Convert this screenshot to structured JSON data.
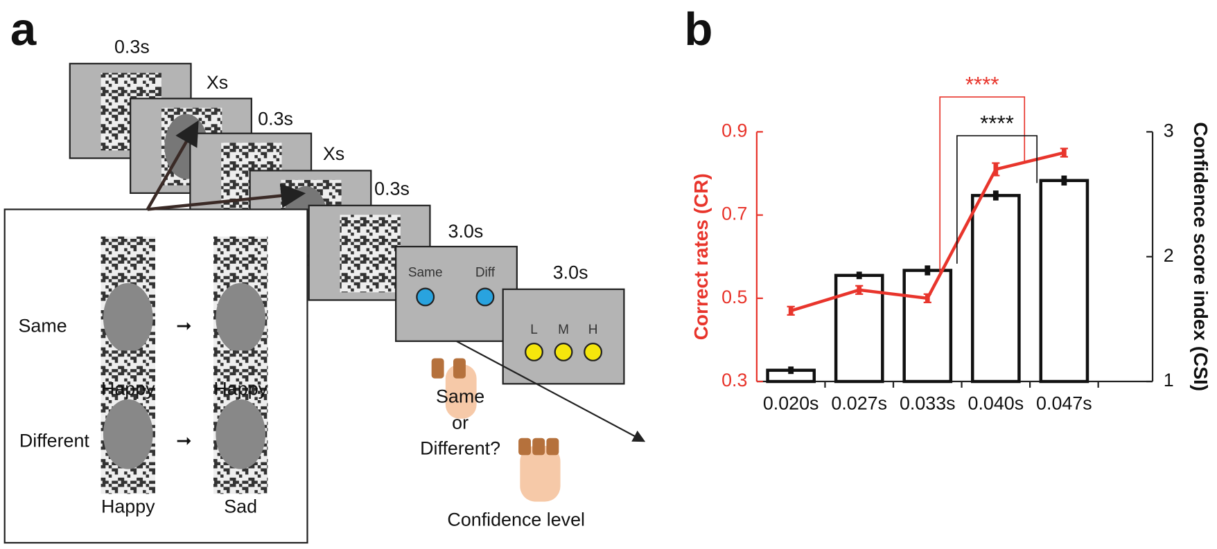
{
  "panel_a": {
    "label": "a",
    "timings": [
      "0.3s",
      "Xs",
      "0.3s",
      "Xs",
      "0.3s",
      "3.0s",
      "3.0s"
    ],
    "response_screen": {
      "options": [
        "Same",
        "Diff"
      ]
    },
    "confidence_screen": {
      "options": [
        "L",
        "M",
        "H"
      ]
    },
    "question": [
      "Same",
      "or",
      "Different?"
    ],
    "confidence_caption": "Confidence level",
    "examples": [
      {
        "condition": "Same",
        "first": "Happy",
        "second": "Happy"
      },
      {
        "condition": "Different",
        "first": "Happy",
        "second": "Sad"
      }
    ]
  },
  "chart_data": {
    "type": "bar-line",
    "label": "b",
    "categories": [
      "0.020s",
      "0.027s",
      "0.033s",
      "0.040s",
      "0.047s"
    ],
    "ylabel": "Correct rates (CR)",
    "y2label": "Confidence score index (CSI)",
    "ylim": [
      0.3,
      0.9
    ],
    "yticks": [
      0.3,
      0.5,
      0.7,
      0.9
    ],
    "y2lim": [
      1,
      3
    ],
    "y2ticks": [
      1,
      2,
      3
    ],
    "series": [
      {
        "name": "Confidence score index (CSI)",
        "type": "bar",
        "axis": "y2",
        "color": "#111111",
        "values": [
          1.09,
          1.85,
          1.89,
          2.49,
          2.61
        ],
        "errors": [
          0.03,
          0.03,
          0.04,
          0.04,
          0.04
        ]
      },
      {
        "name": "Correct rates (CR)",
        "type": "line",
        "axis": "y",
        "color": "#e8352c",
        "values": [
          0.47,
          0.52,
          0.5,
          0.81,
          0.85
        ],
        "errors": [
          0.01,
          0.01,
          0.01,
          0.015,
          0.01
        ]
      }
    ],
    "annotations": [
      {
        "text": "****",
        "color": "#e8352c"
      },
      {
        "text": "****",
        "color": "#111111"
      }
    ]
  }
}
